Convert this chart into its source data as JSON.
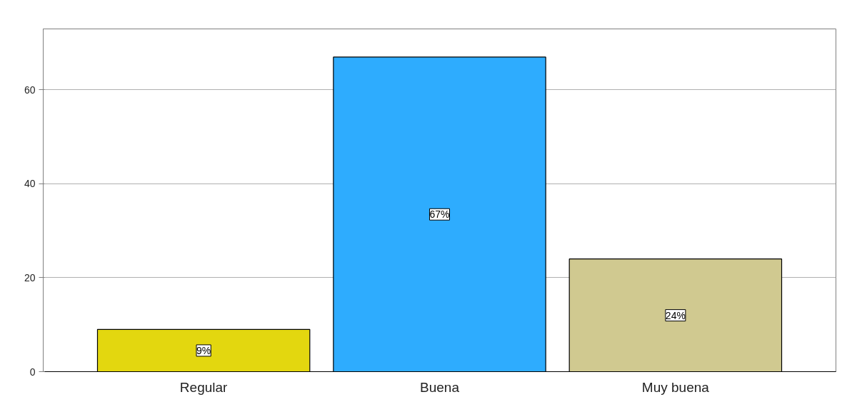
{
  "chart_data": {
    "type": "bar",
    "categories": [
      "Regular",
      "Buena",
      "Muy buena"
    ],
    "values": [
      9,
      67,
      24
    ],
    "colors": [
      "#e3d70f",
      "#2eacfe",
      "#d0c990"
    ],
    "value_labels": [
      "9%",
      "67%",
      "24%"
    ],
    "ylim": [
      0,
      73
    ],
    "yticks": [
      0,
      20,
      40,
      60
    ],
    "grid": "y"
  }
}
